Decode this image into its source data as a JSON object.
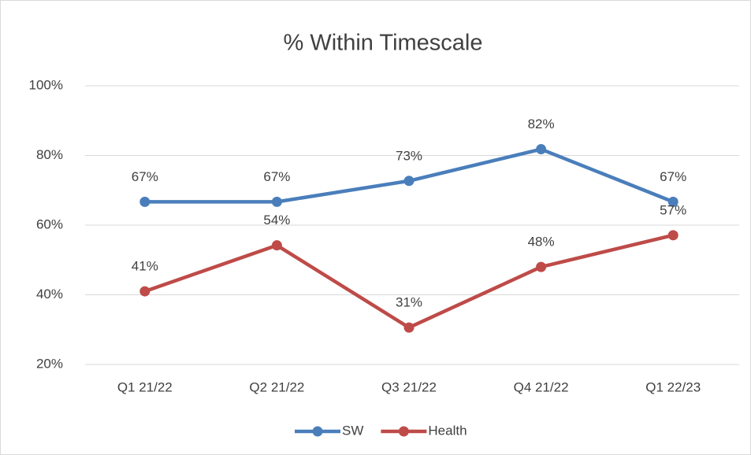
{
  "chart_data": {
    "type": "line",
    "title": "% Within Timescale",
    "categories": [
      "Q1 21/22",
      "Q2 21/22",
      "Q3 21/22",
      "Q4 21/22",
      "Q1 22/23"
    ],
    "series": [
      {
        "name": "SW",
        "color": "#4a7ebb",
        "values": [
          66.7,
          66.7,
          72.7,
          81.8,
          66.7
        ],
        "value_labels": [
          "67%",
          "67%",
          "73%",
          "82%",
          "67%"
        ]
      },
      {
        "name": "Health",
        "color": "#be4b48",
        "values": [
          41.0,
          54.2,
          30.6,
          48.0,
          57.1
        ],
        "value_labels": [
          "41%",
          "54%",
          "31%",
          "48%",
          "57%"
        ]
      }
    ],
    "ylim": [
      20,
      100
    ],
    "yticks": [
      {
        "value": 20,
        "label": "20%"
      },
      {
        "value": 40,
        "label": "40%"
      },
      {
        "value": 60,
        "label": "60%"
      },
      {
        "value": 80,
        "label": "80%"
      },
      {
        "value": 100,
        "label": "100%"
      }
    ],
    "grid": true,
    "legend": "bottom"
  }
}
